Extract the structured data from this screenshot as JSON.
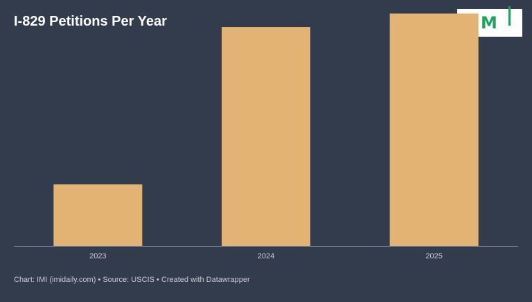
{
  "header": {
    "title": "I-829 Petitions Per Year"
  },
  "logo": {
    "text": "IMI",
    "letter": "M",
    "color": "#1fa25e"
  },
  "footer": {
    "credit": "Chart: IMI (imidaily.com) • Source: USCIS • Created with Datawrapper"
  },
  "chart_data": {
    "type": "bar",
    "categories": [
      "2023",
      "2024",
      "2025"
    ],
    "values": [
      1000,
      3560,
      3780
    ],
    "ylim": [
      0,
      4000
    ],
    "bar_color": "#e3b373",
    "axis_color": "#8a93a0",
    "tick_label_color": "#c9ced6",
    "grid": false
  }
}
